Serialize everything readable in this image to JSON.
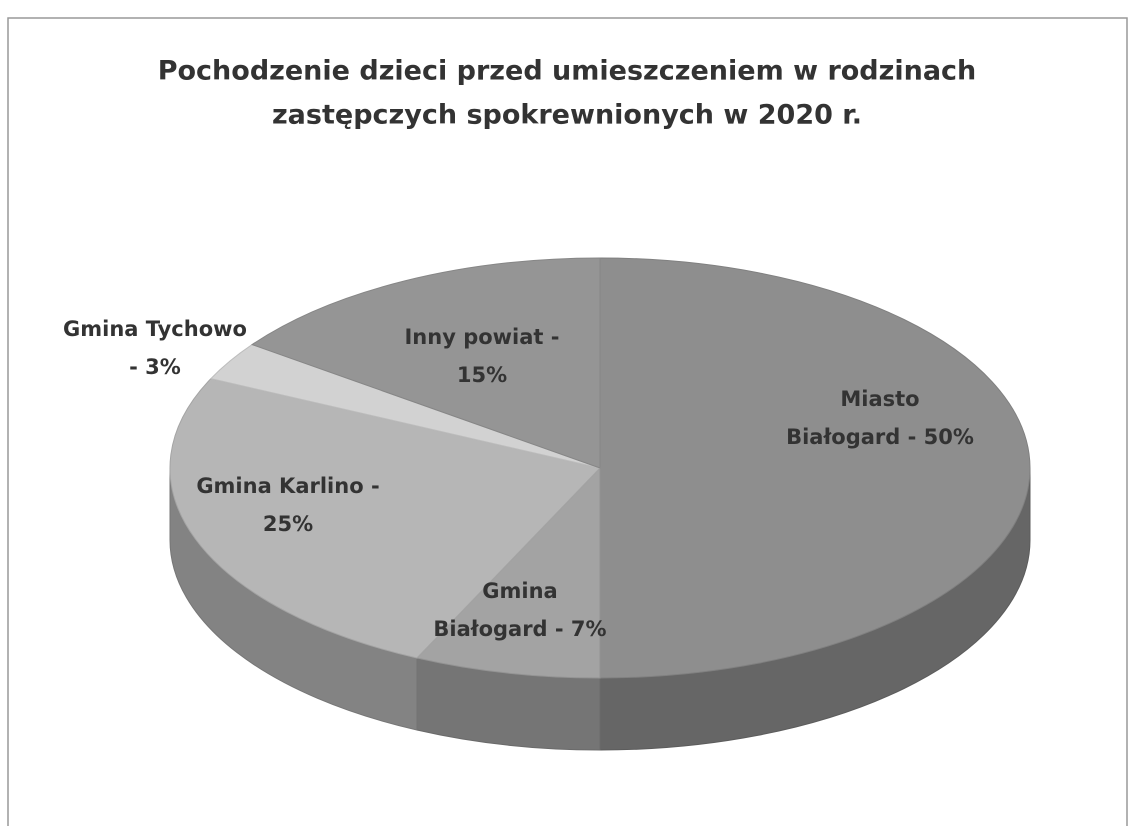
{
  "chart_data": {
    "type": "pie",
    "title": [
      "Pochodzenie dzieci przed umieszczeniem w rodzinach",
      "zastępczych spokrewnionych w 2020 r."
    ],
    "values": [
      50,
      7,
      25,
      3,
      15
    ],
    "value_labels": [
      [
        "Miasto",
        "Białogard - 50%"
      ],
      [
        "Gmina",
        "Białogard - 7%"
      ],
      [
        "Gmina Karlino -",
        "25%"
      ],
      [
        "Gmina Tychowo",
        "- 3%"
      ],
      [
        "Inny powiat -",
        "15%"
      ]
    ],
    "colors": [
      "#8e8e8e",
      "#a3a3a3",
      "#b6b6b6",
      "#d2d2d2",
      "#959595"
    ],
    "style": "3d"
  }
}
